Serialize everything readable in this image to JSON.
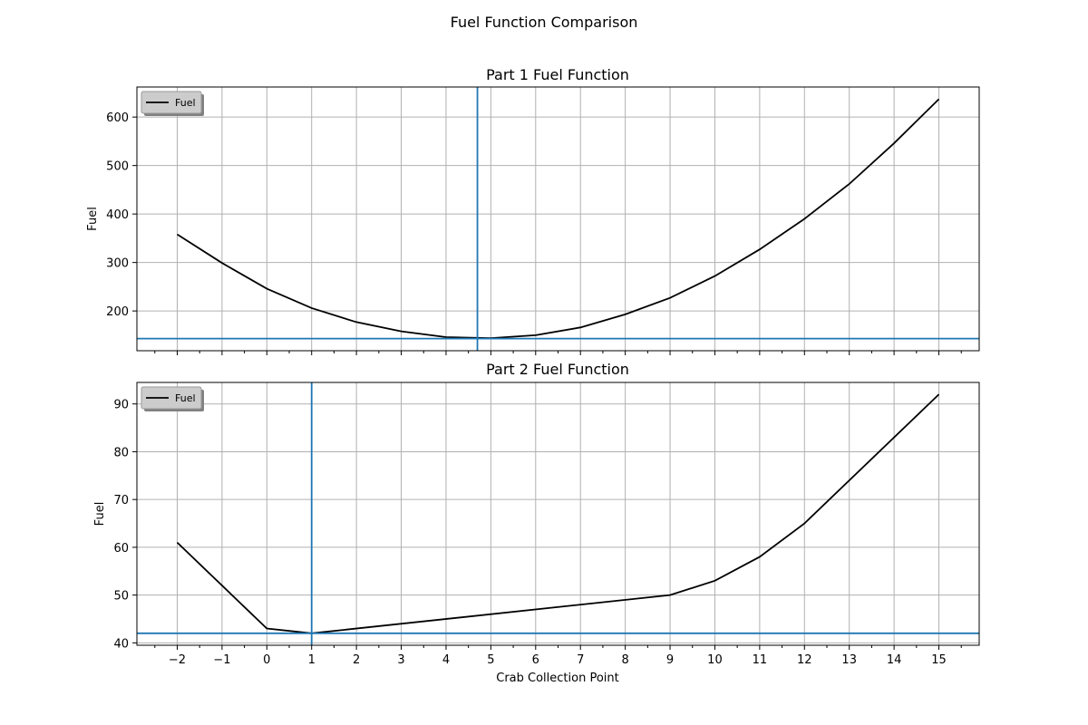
{
  "suptitle": "Fuel Function Comparison",
  "xlabel": "Crab Collection Point",
  "colors": {
    "series": "#000000",
    "reference": "#1f77b4",
    "grid": "#b0b0b0"
  },
  "chart_data": [
    {
      "type": "line",
      "title": "Part 1 Fuel Function",
      "ylabel": "Fuel",
      "xlim": [
        -2.9,
        15.9
      ],
      "ylim": [
        118,
        662
      ],
      "x_ticks": [
        -2,
        -1,
        0,
        1,
        2,
        3,
        4,
        5,
        6,
        7,
        8,
        9,
        10,
        11,
        12,
        13,
        14,
        15
      ],
      "y_ticks": [
        200,
        300,
        400,
        500,
        600
      ],
      "grid": true,
      "legend": {
        "label": "Fuel",
        "position": "upper-left"
      },
      "series": [
        {
          "name": "Fuel",
          "x": [
            -2,
            -1,
            0,
            1,
            2,
            3,
            4,
            5,
            6,
            7,
            8,
            9,
            10,
            11,
            12,
            13,
            14,
            15
          ],
          "values": [
            358,
            299,
            246,
            206,
            177,
            158,
            146,
            144,
            150,
            166,
            193,
            227,
            272,
            327,
            390,
            462,
            546,
            637
          ]
        }
      ],
      "reference_lines": {
        "x": 4.7,
        "y": 143
      }
    },
    {
      "type": "line",
      "title": "Part 2 Fuel Function",
      "ylabel": "Fuel",
      "xlim": [
        -2.9,
        15.9
      ],
      "ylim": [
        39.5,
        94.5
      ],
      "x_ticks": [
        -2,
        -1,
        0,
        1,
        2,
        3,
        4,
        5,
        6,
        7,
        8,
        9,
        10,
        11,
        12,
        13,
        14,
        15
      ],
      "y_ticks": [
        40,
        50,
        60,
        70,
        80,
        90
      ],
      "grid": true,
      "legend": {
        "label": "Fuel",
        "position": "upper-left"
      },
      "series": [
        {
          "name": "Fuel",
          "x": [
            -2,
            0,
            1,
            9,
            10,
            11,
            12,
            15
          ],
          "values": [
            61,
            43,
            42,
            50,
            53,
            58,
            65,
            92
          ]
        }
      ],
      "reference_lines": {
        "x": 1,
        "y": 42
      }
    }
  ]
}
